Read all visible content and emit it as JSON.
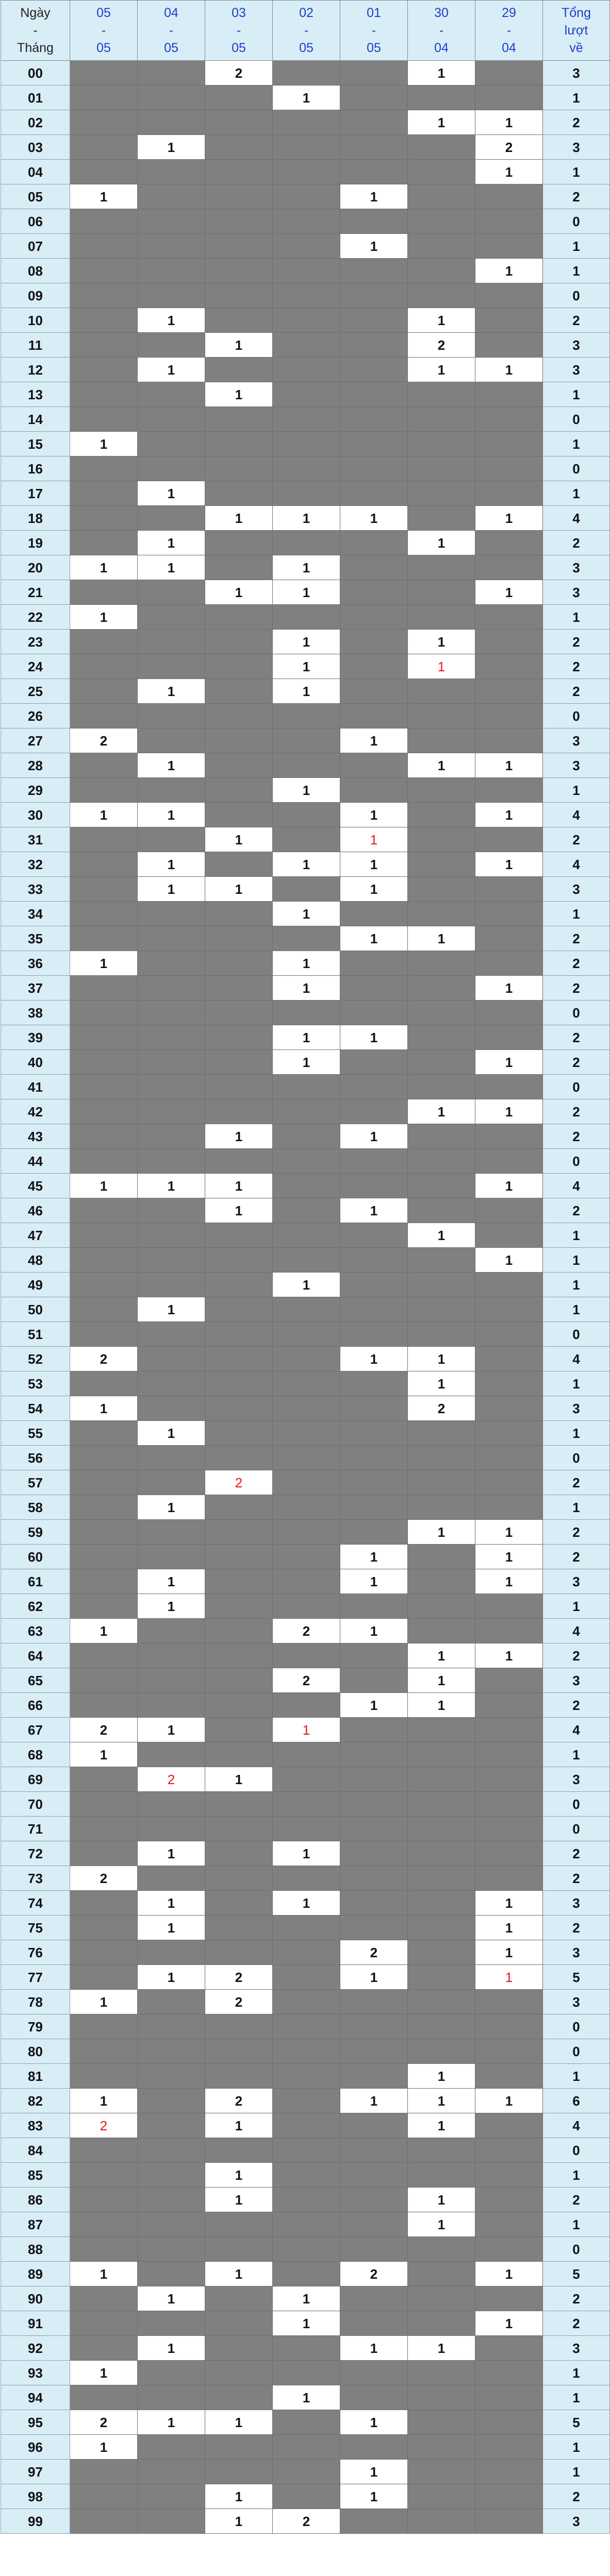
{
  "header": {
    "first": [
      "Ngày",
      "-",
      "Tháng"
    ],
    "dates": [
      [
        "05",
        "-",
        "05"
      ],
      [
        "04",
        "-",
        "05"
      ],
      [
        "03",
        "-",
        "05"
      ],
      [
        "02",
        "-",
        "05"
      ],
      [
        "01",
        "-",
        "05"
      ],
      [
        "30",
        "-",
        "04"
      ],
      [
        "29",
        "-",
        "04"
      ]
    ],
    "total": [
      "Tổng",
      "lượt",
      "về"
    ]
  },
  "colors": {
    "header_bg": "#d9edf7",
    "header_text": "#1e40c8",
    "empty_cell": "#808080",
    "hit_cell": "#ffffff",
    "highlight_text": "#e8141e"
  },
  "rows": [
    {
      "n": "00",
      "v": [
        "",
        "",
        "2",
        "",
        "",
        "1",
        ""
      ],
      "t": "3"
    },
    {
      "n": "01",
      "v": [
        "",
        "",
        "",
        "1",
        "",
        "",
        ""
      ],
      "t": "1"
    },
    {
      "n": "02",
      "v": [
        "",
        "",
        "",
        "",
        "",
        "1",
        "1"
      ],
      "t": "2"
    },
    {
      "n": "03",
      "v": [
        "",
        "1",
        "",
        "",
        "",
        "",
        "2"
      ],
      "t": "3"
    },
    {
      "n": "04",
      "v": [
        "",
        "",
        "",
        "",
        "",
        "",
        "1"
      ],
      "t": "1"
    },
    {
      "n": "05",
      "v": [
        "1",
        "",
        "",
        "",
        "1",
        "",
        ""
      ],
      "t": "2"
    },
    {
      "n": "06",
      "v": [
        "",
        "",
        "",
        "",
        "",
        "",
        ""
      ],
      "t": "0"
    },
    {
      "n": "07",
      "v": [
        "",
        "",
        "",
        "",
        "1",
        "",
        ""
      ],
      "t": "1"
    },
    {
      "n": "08",
      "v": [
        "",
        "",
        "",
        "",
        "",
        "",
        "1"
      ],
      "t": "1"
    },
    {
      "n": "09",
      "v": [
        "",
        "",
        "",
        "",
        "",
        "",
        ""
      ],
      "t": "0"
    },
    {
      "n": "10",
      "v": [
        "",
        "1",
        "",
        "",
        "",
        "1",
        ""
      ],
      "t": "2"
    },
    {
      "n": "11",
      "v": [
        "",
        "",
        "1",
        "",
        "",
        "2",
        ""
      ],
      "t": "3"
    },
    {
      "n": "12",
      "v": [
        "",
        "1",
        "",
        "",
        "",
        "1",
        "1"
      ],
      "t": "3"
    },
    {
      "n": "13",
      "v": [
        "",
        "",
        "1",
        "",
        "",
        "",
        ""
      ],
      "t": "1"
    },
    {
      "n": "14",
      "v": [
        "",
        "",
        "",
        "",
        "",
        "",
        ""
      ],
      "t": "0"
    },
    {
      "n": "15",
      "v": [
        "1",
        "",
        "",
        "",
        "",
        "",
        ""
      ],
      "t": "1"
    },
    {
      "n": "16",
      "v": [
        "",
        "",
        "",
        "",
        "",
        "",
        ""
      ],
      "t": "0"
    },
    {
      "n": "17",
      "v": [
        "",
        "1",
        "",
        "",
        "",
        "",
        ""
      ],
      "t": "1"
    },
    {
      "n": "18",
      "v": [
        "",
        "",
        "1",
        "1",
        "1",
        "",
        "1"
      ],
      "t": "4"
    },
    {
      "n": "19",
      "v": [
        "",
        "1",
        "",
        "",
        "",
        "1",
        ""
      ],
      "t": "2"
    },
    {
      "n": "20",
      "v": [
        "1",
        "1",
        "",
        "1",
        "",
        "",
        ""
      ],
      "t": "3"
    },
    {
      "n": "21",
      "v": [
        "",
        "",
        "1",
        "1",
        "",
        "",
        "1"
      ],
      "t": "3"
    },
    {
      "n": "22",
      "v": [
        "1",
        "",
        "",
        "",
        "",
        "",
        ""
      ],
      "t": "1"
    },
    {
      "n": "23",
      "v": [
        "",
        "",
        "",
        "1",
        "",
        "1",
        ""
      ],
      "t": "2"
    },
    {
      "n": "24",
      "v": [
        "",
        "",
        "",
        "1",
        "",
        "1",
        ""
      ],
      "t": "2",
      "red": [
        5
      ]
    },
    {
      "n": "25",
      "v": [
        "",
        "1",
        "",
        "1",
        "",
        "",
        ""
      ],
      "t": "2"
    },
    {
      "n": "26",
      "v": [
        "",
        "",
        "",
        "",
        "",
        "",
        ""
      ],
      "t": "0"
    },
    {
      "n": "27",
      "v": [
        "2",
        "",
        "",
        "",
        "1",
        "",
        ""
      ],
      "t": "3"
    },
    {
      "n": "28",
      "v": [
        "",
        "1",
        "",
        "",
        "",
        "1",
        "1"
      ],
      "t": "3"
    },
    {
      "n": "29",
      "v": [
        "",
        "",
        "",
        "1",
        "",
        "",
        ""
      ],
      "t": "1"
    },
    {
      "n": "30",
      "v": [
        "1",
        "1",
        "",
        "",
        "1",
        "",
        "1"
      ],
      "t": "4"
    },
    {
      "n": "31",
      "v": [
        "",
        "",
        "1",
        "",
        "1",
        "",
        ""
      ],
      "t": "2",
      "red": [
        4
      ]
    },
    {
      "n": "32",
      "v": [
        "",
        "1",
        "",
        "1",
        "1",
        "",
        "1"
      ],
      "t": "4"
    },
    {
      "n": "33",
      "v": [
        "",
        "1",
        "1",
        "",
        "1",
        "",
        ""
      ],
      "t": "3"
    },
    {
      "n": "34",
      "v": [
        "",
        "",
        "",
        "1",
        "",
        "",
        ""
      ],
      "t": "1"
    },
    {
      "n": "35",
      "v": [
        "",
        "",
        "",
        "",
        "1",
        "1",
        ""
      ],
      "t": "2"
    },
    {
      "n": "36",
      "v": [
        "1",
        "",
        "",
        "1",
        "",
        "",
        ""
      ],
      "t": "2"
    },
    {
      "n": "37",
      "v": [
        "",
        "",
        "",
        "1",
        "",
        "",
        "1"
      ],
      "t": "2"
    },
    {
      "n": "38",
      "v": [
        "",
        "",
        "",
        "",
        "",
        "",
        ""
      ],
      "t": "0"
    },
    {
      "n": "39",
      "v": [
        "",
        "",
        "",
        "1",
        "1",
        "",
        ""
      ],
      "t": "2"
    },
    {
      "n": "40",
      "v": [
        "",
        "",
        "",
        "1",
        "",
        "",
        "1"
      ],
      "t": "2"
    },
    {
      "n": "41",
      "v": [
        "",
        "",
        "",
        "",
        "",
        "",
        ""
      ],
      "t": "0"
    },
    {
      "n": "42",
      "v": [
        "",
        "",
        "",
        "",
        "",
        "1",
        "1"
      ],
      "t": "2"
    },
    {
      "n": "43",
      "v": [
        "",
        "",
        "1",
        "",
        "1",
        "",
        ""
      ],
      "t": "2"
    },
    {
      "n": "44",
      "v": [
        "",
        "",
        "",
        "",
        "",
        "",
        ""
      ],
      "t": "0"
    },
    {
      "n": "45",
      "v": [
        "1",
        "1",
        "1",
        "",
        "",
        "",
        "1"
      ],
      "t": "4"
    },
    {
      "n": "46",
      "v": [
        "",
        "",
        "1",
        "",
        "1",
        "",
        ""
      ],
      "t": "2"
    },
    {
      "n": "47",
      "v": [
        "",
        "",
        "",
        "",
        "",
        "1",
        ""
      ],
      "t": "1"
    },
    {
      "n": "48",
      "v": [
        "",
        "",
        "",
        "",
        "",
        "",
        "1"
      ],
      "t": "1"
    },
    {
      "n": "49",
      "v": [
        "",
        "",
        "",
        "1",
        "",
        "",
        ""
      ],
      "t": "1"
    },
    {
      "n": "50",
      "v": [
        "",
        "1",
        "",
        "",
        "",
        "",
        ""
      ],
      "t": "1"
    },
    {
      "n": "51",
      "v": [
        "",
        "",
        "",
        "",
        "",
        "",
        ""
      ],
      "t": "0"
    },
    {
      "n": "52",
      "v": [
        "2",
        "",
        "",
        "",
        "1",
        "1",
        ""
      ],
      "t": "4"
    },
    {
      "n": "53",
      "v": [
        "",
        "",
        "",
        "",
        "",
        "1",
        ""
      ],
      "t": "1"
    },
    {
      "n": "54",
      "v": [
        "1",
        "",
        "",
        "",
        "",
        "2",
        ""
      ],
      "t": "3"
    },
    {
      "n": "55",
      "v": [
        "",
        "1",
        "",
        "",
        "",
        "",
        ""
      ],
      "t": "1"
    },
    {
      "n": "56",
      "v": [
        "",
        "",
        "",
        "",
        "",
        "",
        ""
      ],
      "t": "0"
    },
    {
      "n": "57",
      "v": [
        "",
        "",
        "2",
        "",
        "",
        "",
        ""
      ],
      "t": "2",
      "red": [
        2
      ]
    },
    {
      "n": "58",
      "v": [
        "",
        "1",
        "",
        "",
        "",
        "",
        ""
      ],
      "t": "1"
    },
    {
      "n": "59",
      "v": [
        "",
        "",
        "",
        "",
        "",
        "1",
        "1"
      ],
      "t": "2"
    },
    {
      "n": "60",
      "v": [
        "",
        "",
        "",
        "",
        "1",
        "",
        "1"
      ],
      "t": "2"
    },
    {
      "n": "61",
      "v": [
        "",
        "1",
        "",
        "",
        "1",
        "",
        "1"
      ],
      "t": "3"
    },
    {
      "n": "62",
      "v": [
        "",
        "1",
        "",
        "",
        "",
        "",
        ""
      ],
      "t": "1"
    },
    {
      "n": "63",
      "v": [
        "1",
        "",
        "",
        "2",
        "1",
        "",
        ""
      ],
      "t": "4"
    },
    {
      "n": "64",
      "v": [
        "",
        "",
        "",
        "",
        "",
        "1",
        "1"
      ],
      "t": "2"
    },
    {
      "n": "65",
      "v": [
        "",
        "",
        "",
        "2",
        "",
        "1",
        ""
      ],
      "t": "3"
    },
    {
      "n": "66",
      "v": [
        "",
        "",
        "",
        "",
        "1",
        "1",
        ""
      ],
      "t": "2"
    },
    {
      "n": "67",
      "v": [
        "2",
        "1",
        "",
        "1",
        "",
        "",
        ""
      ],
      "t": "4",
      "red": [
        3
      ]
    },
    {
      "n": "68",
      "v": [
        "1",
        "",
        "",
        "",
        "",
        "",
        ""
      ],
      "t": "1"
    },
    {
      "n": "69",
      "v": [
        "",
        "2",
        "1",
        "",
        "",
        "",
        ""
      ],
      "t": "3",
      "red": [
        1
      ]
    },
    {
      "n": "70",
      "v": [
        "",
        "",
        "",
        "",
        "",
        "",
        ""
      ],
      "t": "0"
    },
    {
      "n": "71",
      "v": [
        "",
        "",
        "",
        "",
        "",
        "",
        ""
      ],
      "t": "0"
    },
    {
      "n": "72",
      "v": [
        "",
        "1",
        "",
        "1",
        "",
        "",
        ""
      ],
      "t": "2"
    },
    {
      "n": "73",
      "v": [
        "2",
        "",
        "",
        "",
        "",
        "",
        ""
      ],
      "t": "2"
    },
    {
      "n": "74",
      "v": [
        "",
        "1",
        "",
        "1",
        "",
        "",
        "1"
      ],
      "t": "3"
    },
    {
      "n": "75",
      "v": [
        "",
        "1",
        "",
        "",
        "",
        "",
        "1"
      ],
      "t": "2"
    },
    {
      "n": "76",
      "v": [
        "",
        "",
        "",
        "",
        "2",
        "",
        "1"
      ],
      "t": "3"
    },
    {
      "n": "77",
      "v": [
        "",
        "1",
        "2",
        "",
        "1",
        "",
        "1"
      ],
      "t": "5",
      "red": [
        6
      ]
    },
    {
      "n": "78",
      "v": [
        "1",
        "",
        "2",
        "",
        "",
        "",
        ""
      ],
      "t": "3"
    },
    {
      "n": "79",
      "v": [
        "",
        "",
        "",
        "",
        "",
        "",
        ""
      ],
      "t": "0"
    },
    {
      "n": "80",
      "v": [
        "",
        "",
        "",
        "",
        "",
        "",
        ""
      ],
      "t": "0"
    },
    {
      "n": "81",
      "v": [
        "",
        "",
        "",
        "",
        "",
        "1",
        ""
      ],
      "t": "1"
    },
    {
      "n": "82",
      "v": [
        "1",
        "",
        "2",
        "",
        "1",
        "1",
        "1"
      ],
      "t": "6"
    },
    {
      "n": "83",
      "v": [
        "2",
        "",
        "1",
        "",
        "",
        "1",
        ""
      ],
      "t": "4",
      "red": [
        0
      ]
    },
    {
      "n": "84",
      "v": [
        "",
        "",
        "",
        "",
        "",
        "",
        ""
      ],
      "t": "0"
    },
    {
      "n": "85",
      "v": [
        "",
        "",
        "1",
        "",
        "",
        "",
        ""
      ],
      "t": "1"
    },
    {
      "n": "86",
      "v": [
        "",
        "",
        "1",
        "",
        "",
        "1",
        ""
      ],
      "t": "2"
    },
    {
      "n": "87",
      "v": [
        "",
        "",
        "",
        "",
        "",
        "1",
        ""
      ],
      "t": "1"
    },
    {
      "n": "88",
      "v": [
        "",
        "",
        "",
        "",
        "",
        "",
        ""
      ],
      "t": "0"
    },
    {
      "n": "89",
      "v": [
        "1",
        "",
        "1",
        "",
        "2",
        "",
        "1"
      ],
      "t": "5"
    },
    {
      "n": "90",
      "v": [
        "",
        "1",
        "",
        "1",
        "",
        "",
        ""
      ],
      "t": "2"
    },
    {
      "n": "91",
      "v": [
        "",
        "",
        "",
        "1",
        "",
        "",
        "1"
      ],
      "t": "2"
    },
    {
      "n": "92",
      "v": [
        "",
        "1",
        "",
        "",
        "1",
        "1",
        ""
      ],
      "t": "3"
    },
    {
      "n": "93",
      "v": [
        "1",
        "",
        "",
        "",
        "",
        "",
        ""
      ],
      "t": "1"
    },
    {
      "n": "94",
      "v": [
        "",
        "",
        "",
        "1",
        "",
        "",
        ""
      ],
      "t": "1"
    },
    {
      "n": "95",
      "v": [
        "2",
        "1",
        "1",
        "",
        "1",
        "",
        ""
      ],
      "t": "5"
    },
    {
      "n": "96",
      "v": [
        "1",
        "",
        "",
        "",
        "",
        "",
        ""
      ],
      "t": "1"
    },
    {
      "n": "97",
      "v": [
        "",
        "",
        "",
        "",
        "1",
        "",
        ""
      ],
      "t": "1"
    },
    {
      "n": "98",
      "v": [
        "",
        "",
        "1",
        "",
        "1",
        "",
        ""
      ],
      "t": "2"
    },
    {
      "n": "99",
      "v": [
        "",
        "",
        "1",
        "2",
        "",
        "",
        ""
      ],
      "t": "3"
    }
  ]
}
